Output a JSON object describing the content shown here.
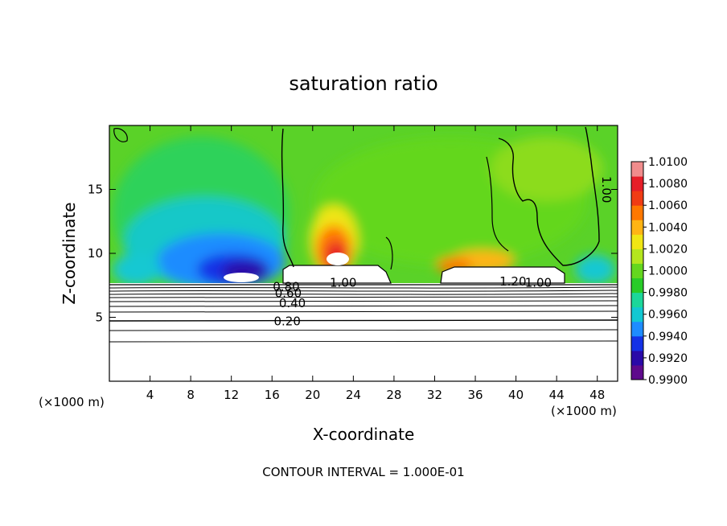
{
  "chart_data": {
    "type": "heatmap",
    "title": "saturation ratio",
    "xlabel": "X-coordinate",
    "ylabel": "Z-coordinate",
    "x_unit_left": "(×1000 m)",
    "x_unit_right": "(×1000 m)",
    "footer": "CONTOUR INTERVAL = 1.000E-01",
    "xlim": [
      0,
      50
    ],
    "ylim": [
      0,
      20
    ],
    "x_ticks": [
      4,
      8,
      12,
      16,
      20,
      24,
      28,
      32,
      36,
      40,
      44,
      48
    ],
    "y_ticks": [
      5,
      10,
      15
    ],
    "colorbar": {
      "min": 0.99,
      "max": 1.01,
      "labels": [
        "1.0100",
        "1.0080",
        "1.0060",
        "1.0040",
        "1.0020",
        "1.0000",
        "0.9980",
        "0.9960",
        "0.9940",
        "0.9920",
        "0.9900"
      ],
      "colors": [
        "#5e0a8c",
        "#2a0aa8",
        "#1432e6",
        "#1e8cff",
        "#12c8d2",
        "#1cd79a",
        "#28cc28",
        "#64d71e",
        "#b4e61e",
        "#f0e614",
        "#ffb414",
        "#ff7800",
        "#f03c14",
        "#e61e28",
        "#f08c8c"
      ]
    },
    "contour_labels": [
      "1.00",
      "1.20",
      "1.00",
      "0.80",
      "0.60",
      "0.40",
      "0.20",
      "1.00"
    ],
    "contour_levels_y": [
      2.0,
      3.3,
      4.8,
      5.6,
      6.1,
      6.5,
      6.9,
      7.3
    ]
  }
}
